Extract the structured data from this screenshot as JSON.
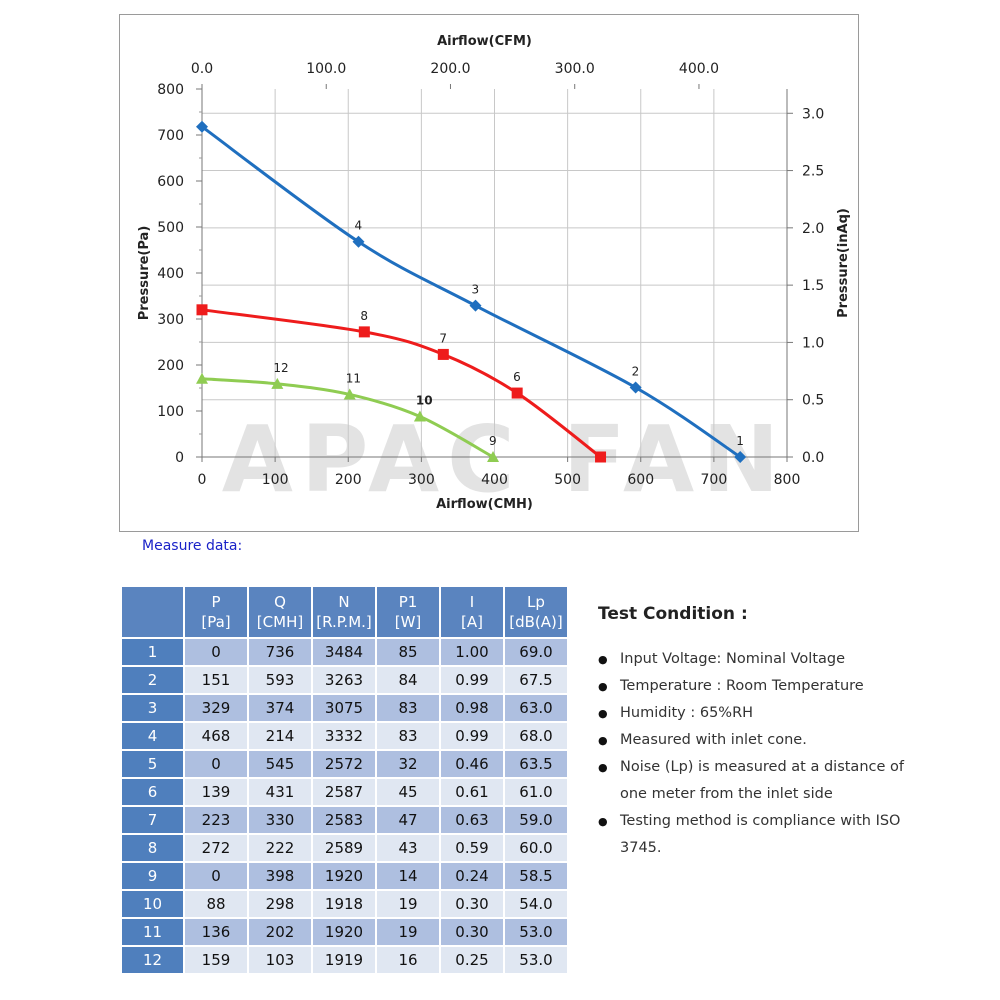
{
  "chart_data": {
    "type": "line",
    "watermark": "APAC FAN",
    "xlabel_bottom": "Airflow(CMH)",
    "xlabel_top": "Airflow(CFM)",
    "ylabel_left": "Pressure(Pa)",
    "ylabel_right": "Pressure(inAq)",
    "xlim": [
      0,
      800
    ],
    "ylim": [
      0,
      800
    ],
    "xticks_bottom": [
      "0",
      "100",
      "200",
      "300",
      "400",
      "500",
      "600",
      "700",
      "800"
    ],
    "yticks_left": [
      "0",
      "100",
      "200",
      "300",
      "400",
      "500",
      "600",
      "700",
      "800"
    ],
    "xticks_top": [
      "0.0",
      "100.0",
      "200.0",
      "300.0",
      "400.0"
    ],
    "yticks_right": [
      "0.0",
      "0.5",
      "1.0",
      "1.5",
      "2.0",
      "2.5",
      "3.0"
    ],
    "grid": true,
    "series": [
      {
        "color": "#1f6fbf",
        "marker": "diamond",
        "points": [
          {
            "label": "1",
            "x": 736,
            "y": 0
          },
          {
            "label": "2",
            "x": 593,
            "y": 151
          },
          {
            "label": "3",
            "x": 374,
            "y": 329
          },
          {
            "label": "4",
            "x": 214,
            "y": 468
          },
          {
            "label": "",
            "x": 0,
            "y": 718
          }
        ]
      },
      {
        "color": "#ee1c1c",
        "marker": "square",
        "points": [
          {
            "label": "",
            "x": 545,
            "y": 0
          },
          {
            "label": "6",
            "x": 431,
            "y": 139
          },
          {
            "label": "7",
            "x": 330,
            "y": 223
          },
          {
            "label": "8",
            "x": 222,
            "y": 272
          },
          {
            "label": "",
            "x": 0,
            "y": 320
          }
        ]
      },
      {
        "color": "#8fcc52",
        "marker": "triangle",
        "points": [
          {
            "label": "9",
            "x": 398,
            "y": 0
          },
          {
            "label": "10",
            "x": 298,
            "y": 88
          },
          {
            "label": "11",
            "x": 202,
            "y": 136
          },
          {
            "label": "12",
            "x": 103,
            "y": 159
          },
          {
            "label": "",
            "x": 0,
            "y": 170
          }
        ]
      }
    ]
  },
  "measure_title": "Measure data:",
  "table": {
    "headers": [
      {
        "top": "P",
        "bottom": "[Pa]"
      },
      {
        "top": "Q",
        "bottom": "[CMH]"
      },
      {
        "top": "N",
        "bottom": "[R.P.M.]"
      },
      {
        "top": "P1",
        "bottom": "[W]"
      },
      {
        "top": "I",
        "bottom": "[A]"
      },
      {
        "top": "Lp",
        "bottom": "[dB(A)]"
      }
    ],
    "rows": [
      [
        "1",
        "0",
        "736",
        "3484",
        "85",
        "1.00",
        "69.0"
      ],
      [
        "2",
        "151",
        "593",
        "3263",
        "84",
        "0.99",
        "67.5"
      ],
      [
        "3",
        "329",
        "374",
        "3075",
        "83",
        "0.98",
        "63.0"
      ],
      [
        "4",
        "468",
        "214",
        "3332",
        "83",
        "0.99",
        "68.0"
      ],
      [
        "5",
        "0",
        "545",
        "2572",
        "32",
        "0.46",
        "63.5"
      ],
      [
        "6",
        "139",
        "431",
        "2587",
        "45",
        "0.61",
        "61.0"
      ],
      [
        "7",
        "223",
        "330",
        "2583",
        "47",
        "0.63",
        "59.0"
      ],
      [
        "8",
        "272",
        "222",
        "2589",
        "43",
        "0.59",
        "60.0"
      ],
      [
        "9",
        "0",
        "398",
        "1920",
        "14",
        "0.24",
        "58.5"
      ],
      [
        "10",
        "88",
        "298",
        "1918",
        "19",
        "0.30",
        "54.0"
      ],
      [
        "11",
        "136",
        "202",
        "1920",
        "19",
        "0.30",
        "53.0"
      ],
      [
        "12",
        "159",
        "103",
        "1919",
        "16",
        "0.25",
        "53.0"
      ]
    ]
  },
  "test_condition": {
    "title": "Test Condition :",
    "items": [
      "Input Voltage: Nominal Voltage",
      "Temperature : Room Temperature",
      "Humidity : 65%RH",
      "Measured with inlet cone.",
      "Noise (Lp) is measured at a distance of one meter from the inlet side",
      "Testing method is compliance with ISO 3745."
    ]
  }
}
